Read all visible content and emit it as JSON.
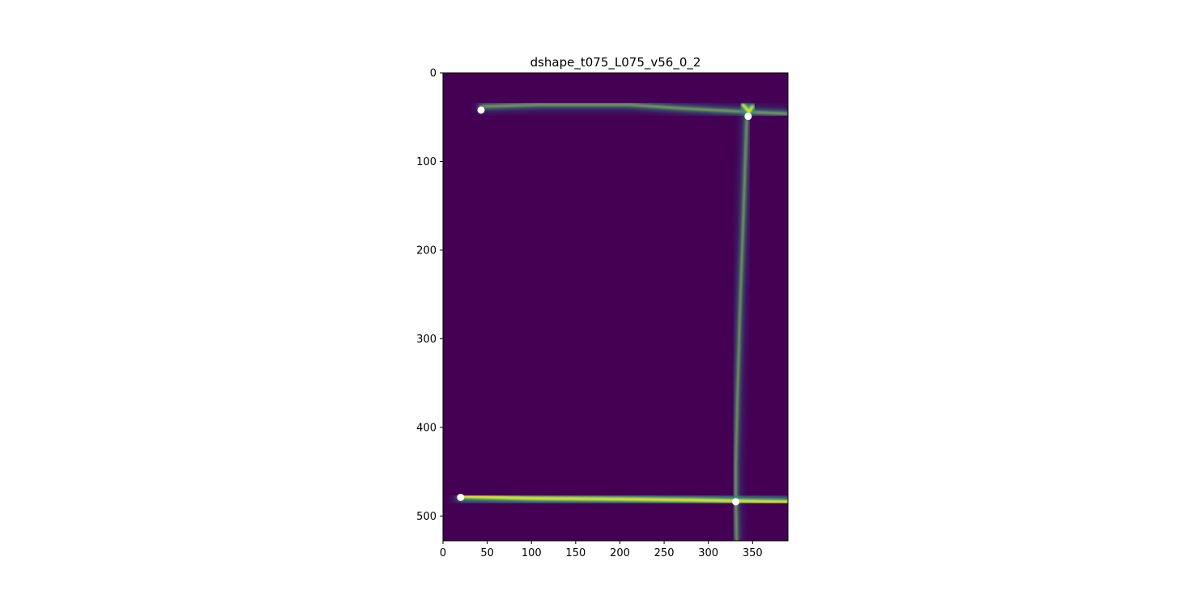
{
  "chart_data": {
    "type": "heatmap",
    "title": "dshape_t075_L075_v56_0_2",
    "xlabel": "",
    "ylabel": "",
    "xlim": [
      0,
      390
    ],
    "ylim": [
      528,
      0
    ],
    "x_ticks": [
      0,
      50,
      100,
      150,
      200,
      250,
      300,
      350
    ],
    "y_ticks": [
      0,
      100,
      200,
      300,
      400,
      500
    ],
    "colormap": "viridis",
    "colors": {
      "background": "#440154",
      "low": "#31688e",
      "mid": "#35b779",
      "high": "#fde725",
      "marker": "#ffffff"
    },
    "grid": false,
    "legend": "none",
    "bright_traces": [
      {
        "name": "top-horizontal",
        "points": [
          [
            42,
            38
          ],
          [
            110,
            36
          ],
          [
            210,
            36
          ],
          [
            270,
            40
          ],
          [
            343,
            44
          ],
          [
            390,
            46
          ]
        ],
        "intensity": 0.55
      },
      {
        "name": "vertical",
        "points": [
          [
            344,
            40
          ],
          [
            343,
            60
          ],
          [
            340,
            150
          ],
          [
            336,
            260
          ],
          [
            333,
            360
          ],
          [
            331,
            440
          ],
          [
            331,
            480
          ],
          [
            332,
            528
          ]
        ],
        "intensity": 0.65
      },
      {
        "name": "bottom-horizontal",
        "points": [
          [
            20,
            478
          ],
          [
            100,
            480
          ],
          [
            200,
            481
          ],
          [
            280,
            482
          ],
          [
            331,
            483
          ],
          [
            390,
            484
          ]
        ],
        "intensity": 1.0
      },
      {
        "name": "top-right-blob",
        "points": [
          [
            339,
            36
          ],
          [
            346,
            44
          ],
          [
            350,
            38
          ]
        ],
        "intensity": 1.0
      }
    ],
    "markers": [
      {
        "x": 43,
        "y": 42
      },
      {
        "x": 345,
        "y": 49
      },
      {
        "x": 20,
        "y": 479
      },
      {
        "x": 331,
        "y": 484
      }
    ]
  }
}
